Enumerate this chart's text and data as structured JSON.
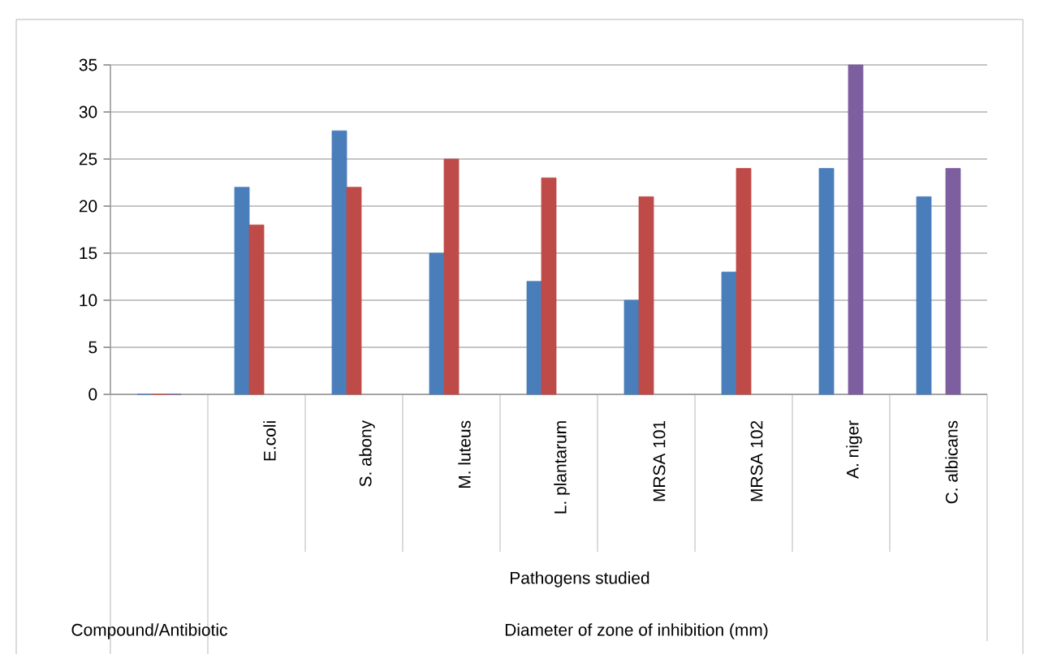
{
  "chart_data": {
    "type": "bar",
    "categories": [
      null,
      "E.coli",
      "S. abony",
      "M. luteus",
      "L. plantarum",
      "MRSA 101",
      "MRSA 102",
      "A. niger",
      "C. albicans"
    ],
    "series": [
      {
        "color": "#4a7ebb",
        "values": [
          0,
          22,
          28,
          15,
          12,
          10,
          13,
          24,
          21
        ]
      },
      {
        "color": "#be4b48",
        "values": [
          0,
          18,
          22,
          25,
          23,
          21,
          24,
          null,
          null
        ]
      },
      {
        "color": "#7d5fa0",
        "values": [
          0,
          null,
          null,
          null,
          null,
          null,
          null,
          35,
          24
        ]
      }
    ],
    "ylim": [
      0,
      35
    ],
    "yticks": [
      0,
      5,
      10,
      15,
      20,
      25,
      30,
      35
    ],
    "grid": "y",
    "annotations": [
      "Pathogens studied",
      "Compound/Antibiotic",
      "Diameter of zone of inhibition (mm)"
    ]
  }
}
